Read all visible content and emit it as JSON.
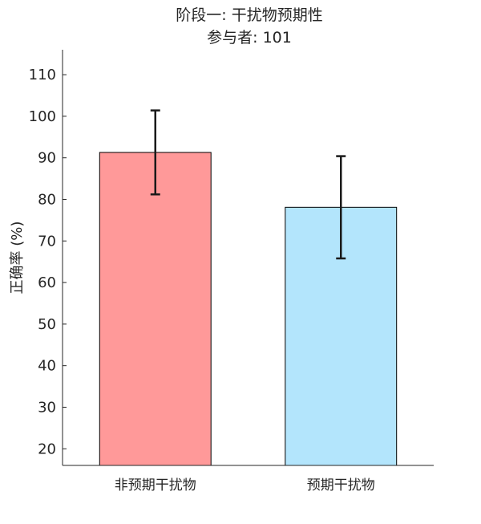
{
  "chart_data": {
    "type": "bar",
    "title": "阶段一: 干扰物预期性",
    "subtitle": "参与者: 101",
    "xlabel": "",
    "ylabel": "正确率 (%)",
    "categories": [
      "非预期干扰物",
      "预期干扰物"
    ],
    "values": [
      91.3,
      78.1
    ],
    "error": [
      10.1,
      12.3
    ],
    "colors": [
      "#ff9999",
      "#b3e5fc"
    ],
    "ylim": [
      16,
      116
    ],
    "yticks": [
      20,
      30,
      40,
      50,
      60,
      70,
      80,
      90,
      100,
      110
    ],
    "grid": false
  }
}
